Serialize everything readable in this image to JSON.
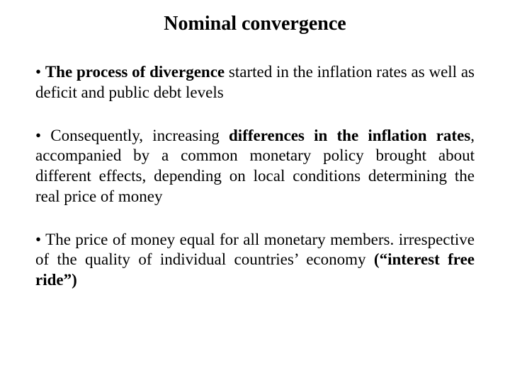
{
  "title": "Nominal convergence",
  "bullets": {
    "b1": {
      "pre": "• ",
      "bold1": "The process of divergence",
      "rest": " started in the inflation rates as well as deficit and public debt levels"
    },
    "b2": {
      "pre": "• Consequently, increasing ",
      "bold1": "differences in the inflation rates",
      "rest": ", accompanied by a common monetary policy brought about different effects, depending on local conditions determining the real price of money"
    },
    "b3": {
      "pre": "• The price of money equal for all monetary members. irrespective of the quality of individual countries’ economy ",
      "bold1": "(“interest free ride”)",
      "rest": ""
    }
  }
}
